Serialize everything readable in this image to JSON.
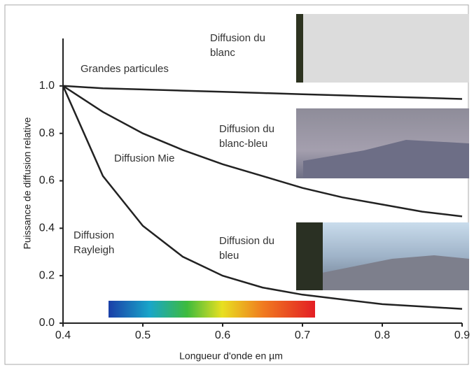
{
  "chart_data": {
    "type": "line",
    "x_label": "Longueur d'onde en µm",
    "y_label": "Puissance de diffusion relative",
    "x": [
      0.4,
      0.45,
      0.5,
      0.55,
      0.6,
      0.65,
      0.7,
      0.75,
      0.8,
      0.85,
      0.9
    ],
    "series": [
      {
        "name": "Grandes particules",
        "color": "#222222",
        "values": [
          1.0,
          0.99,
          0.985,
          0.98,
          0.975,
          0.97,
          0.965,
          0.96,
          0.955,
          0.95,
          0.945
        ]
      },
      {
        "name": "Diffusion Mie",
        "color": "#222222",
        "values": [
          1.0,
          0.89,
          0.8,
          0.73,
          0.67,
          0.62,
          0.57,
          0.53,
          0.5,
          0.47,
          0.45
        ]
      },
      {
        "name": "Diffusion Rayleigh",
        "color": "#222222",
        "values": [
          1.0,
          0.62,
          0.41,
          0.28,
          0.2,
          0.15,
          0.12,
          0.1,
          0.08,
          0.07,
          0.06
        ]
      }
    ],
    "annotations": [
      "Diffusion du blanc",
      "Diffusion du blanc-bleu",
      "Diffusion du bleu"
    ],
    "xlim": [
      0.4,
      0.9
    ],
    "ylim": [
      0,
      1.2
    ],
    "xticks": [
      0.4,
      0.5,
      0.6,
      0.7,
      0.8,
      0.9
    ],
    "yticks": [
      {
        "value": 0,
        "label": "0.0"
      },
      0.2,
      0.4,
      0.6,
      0.8,
      {
        "value": 1,
        "label": "1.0"
      }
    ]
  }
}
